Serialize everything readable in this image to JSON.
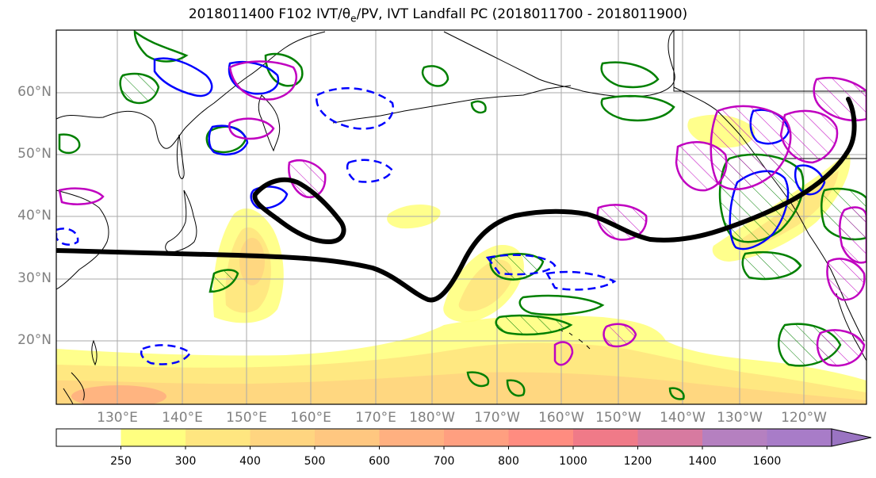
{
  "title": "2018011400 F102 IVT/θe/PV, IVT Landfall PC (2018011700 - 2018011900)",
  "title_main": "2018011400 F102 IVT/θ",
  "title_sub": "e",
  "title_rest": "/PV, IVT Landfall PC (2018011700 - 2018011900)",
  "lat_labels": [
    "60°N",
    "50°N",
    "40°N",
    "30°N",
    "20°N"
  ],
  "lon_labels": [
    "130°E",
    "140°E",
    "150°E",
    "160°E",
    "170°E",
    "180°W",
    "170°W",
    "160°W",
    "150°W",
    "140°W",
    "130°W",
    "120°W"
  ],
  "colorbar": {
    "levels": [
      "250",
      "300",
      "400",
      "500",
      "600",
      "700",
      "800",
      "1000",
      "1200",
      "1400",
      "1600"
    ],
    "colors": [
      "#ffffff",
      "#ffff80",
      "#ffe680",
      "#ffd580",
      "#ffc780",
      "#ffb080",
      "#ff9f80",
      "#ff8c80",
      "#f07a88",
      "#d77aa0",
      "#b580c0",
      "#a87cc8",
      "#9a74c2"
    ]
  },
  "colors": {
    "pc_contour": "#000000",
    "pv_positive": "#0000ff",
    "pv_negative": "#0000ff",
    "theta_e": "#008000",
    "purple_contour": "#c000c0",
    "grid": "#aaaaaa",
    "coast": "#000000"
  }
}
